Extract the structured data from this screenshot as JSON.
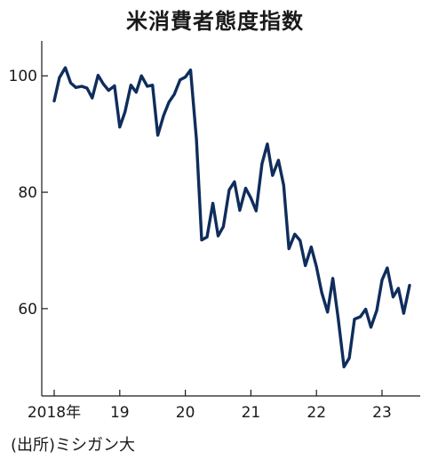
{
  "chart_data": {
    "type": "line",
    "title": "米消費者態度指数",
    "source": "(出所)ミシガン大",
    "xlabel": "",
    "ylabel": "",
    "x_tick_labels": [
      "2018年",
      "19",
      "20",
      "21",
      "22",
      "23"
    ],
    "y_tick_labels": [
      "100",
      "80",
      "60"
    ],
    "y_ticks": [
      100,
      80,
      60
    ],
    "ylim": [
      45,
      106
    ],
    "x_range": [
      2018.0,
      2023.75
    ],
    "line_color": "#0f2d5c",
    "grid": false,
    "series": [
      {
        "points": [
          [
            2018.0,
            95.7
          ],
          [
            2018.08,
            99.7
          ],
          [
            2018.17,
            101.4
          ],
          [
            2018.25,
            98.8
          ],
          [
            2018.33,
            98.0
          ],
          [
            2018.42,
            98.2
          ],
          [
            2018.5,
            97.9
          ],
          [
            2018.58,
            96.2
          ],
          [
            2018.67,
            100.1
          ],
          [
            2018.75,
            98.6
          ],
          [
            2018.83,
            97.5
          ],
          [
            2018.92,
            98.3
          ],
          [
            2019.0,
            91.2
          ],
          [
            2019.08,
            93.8
          ],
          [
            2019.17,
            98.4
          ],
          [
            2019.25,
            97.2
          ],
          [
            2019.33,
            100.0
          ],
          [
            2019.42,
            98.2
          ],
          [
            2019.5,
            98.4
          ],
          [
            2019.58,
            89.8
          ],
          [
            2019.67,
            93.2
          ],
          [
            2019.75,
            95.5
          ],
          [
            2019.83,
            96.8
          ],
          [
            2019.92,
            99.3
          ],
          [
            2020.0,
            99.8
          ],
          [
            2020.08,
            101.0
          ],
          [
            2020.17,
            89.1
          ],
          [
            2020.25,
            71.8
          ],
          [
            2020.33,
            72.3
          ],
          [
            2020.42,
            78.1
          ],
          [
            2020.5,
            72.5
          ],
          [
            2020.58,
            74.1
          ],
          [
            2020.67,
            80.4
          ],
          [
            2020.75,
            81.8
          ],
          [
            2020.83,
            76.9
          ],
          [
            2020.92,
            80.7
          ],
          [
            2021.0,
            79.0
          ],
          [
            2021.08,
            76.8
          ],
          [
            2021.17,
            84.9
          ],
          [
            2021.25,
            88.3
          ],
          [
            2021.33,
            82.9
          ],
          [
            2021.42,
            85.5
          ],
          [
            2021.5,
            81.2
          ],
          [
            2021.58,
            70.3
          ],
          [
            2021.67,
            72.8
          ],
          [
            2021.75,
            71.7
          ],
          [
            2021.83,
            67.4
          ],
          [
            2021.92,
            70.6
          ],
          [
            2022.0,
            67.2
          ],
          [
            2022.08,
            62.8
          ],
          [
            2022.17,
            59.4
          ],
          [
            2022.25,
            65.2
          ],
          [
            2022.33,
            58.4
          ],
          [
            2022.42,
            50.0
          ],
          [
            2022.5,
            51.5
          ],
          [
            2022.58,
            58.2
          ],
          [
            2022.67,
            58.6
          ],
          [
            2022.75,
            59.9
          ],
          [
            2022.83,
            56.8
          ],
          [
            2022.92,
            59.7
          ],
          [
            2023.0,
            64.9
          ],
          [
            2023.08,
            67.0
          ],
          [
            2023.17,
            62.0
          ],
          [
            2023.25,
            63.5
          ],
          [
            2023.33,
            59.2
          ],
          [
            2023.42,
            64.0
          ]
        ]
      }
    ]
  }
}
